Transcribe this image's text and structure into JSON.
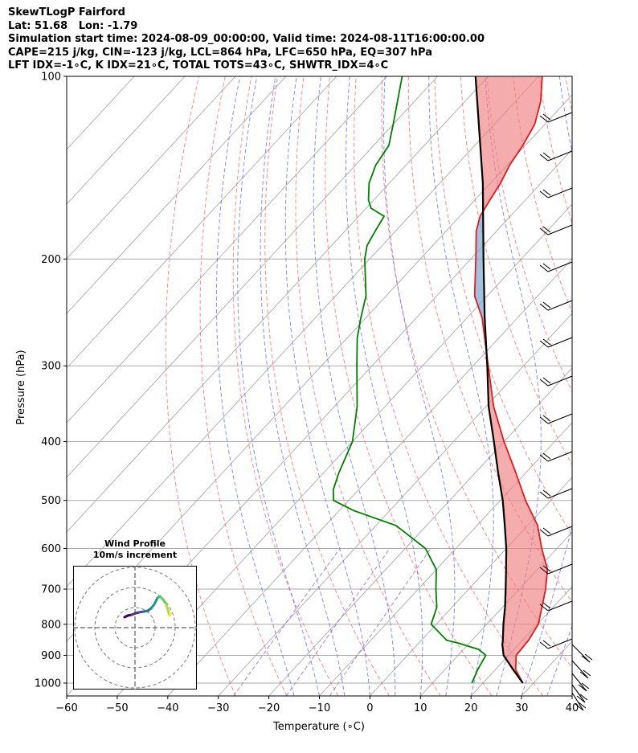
{
  "title": {
    "line1": "SkewTLogP Fairford",
    "line2": "Lat: 51.68   Lon: -1.79",
    "line3": "Simulation start time: 2024-08-09_00:00:00, Valid time: 2024-08-11T16:00:00.00",
    "line4": "CAPE=215 j/kg, CIN=-123 j/kg, LCL=864 hPa, LFC=650 hPa, EQ=307 hPa",
    "line5": "LFT IDX=-1∘C, K IDX=21∘C, TOTAL TOTS=43∘C, SHWTR_IDX=4∘C"
  },
  "inset": {
    "title1": "Wind Profile",
    "title2": "10m/s increment"
  },
  "colors": {
    "temperature": "#e41a1c",
    "dewpoint": "#008000",
    "parcel": "#000000",
    "cape_fill": "#7aaad2",
    "cin_fill": "#f08080",
    "dry_adiabat": "#ff6666",
    "moist_adiabat": "#6666ff",
    "mixing_ratio": "#9966cc",
    "isotherm": "#aaaaaa"
  },
  "chart_data": {
    "type": "line",
    "subtype": "skewT-logP",
    "xlabel": "Temperature (∘C)",
    "ylabel": "Pressure (hPa)",
    "xlim": [
      -60,
      40
    ],
    "ylim": [
      1050,
      100
    ],
    "y_scale": "log",
    "x_ticks": [
      "−60",
      "−50",
      "−40",
      "−30",
      "−20",
      "−10",
      "0",
      "10",
      "20",
      "30",
      "40"
    ],
    "y_ticks": [
      "100",
      "200",
      "300",
      "400",
      "500",
      "600",
      "700",
      "800",
      "900",
      "1000"
    ],
    "grid": true,
    "series": [
      {
        "key": "temperature",
        "points": [
          [
            1000,
            27.9
          ],
          [
            950,
            24
          ],
          [
            900,
            21.5
          ],
          [
            850,
            21.2
          ],
          [
            800,
            20.2
          ],
          [
            750,
            17.8
          ],
          [
            700,
            15.2
          ],
          [
            650,
            12
          ],
          [
            600,
            7
          ],
          [
            550,
            2
          ],
          [
            500,
            -5
          ],
          [
            450,
            -12
          ],
          [
            400,
            -20
          ],
          [
            350,
            -28.5
          ],
          [
            300,
            -37
          ],
          [
            250,
            -47
          ],
          [
            230,
            -52.5
          ],
          [
            200,
            -59
          ],
          [
            180,
            -64
          ],
          [
            170,
            -66
          ],
          [
            160,
            -67
          ],
          [
            150,
            -68
          ],
          [
            140,
            -69.5
          ],
          [
            130,
            -70.5
          ],
          [
            120,
            -72
          ],
          [
            110,
            -75
          ],
          [
            100,
            -79.3
          ]
        ]
      },
      {
        "key": "dewpoint",
        "points": [
          [
            1000,
            17.8
          ],
          [
            950,
            16.5
          ],
          [
            900,
            15.5
          ],
          [
            880,
            13
          ],
          [
            860,
            8
          ],
          [
            850,
            5
          ],
          [
            800,
            -1
          ],
          [
            750,
            -3
          ],
          [
            700,
            -6.5
          ],
          [
            650,
            -10
          ],
          [
            600,
            -16
          ],
          [
            550,
            -26
          ],
          [
            520,
            -37
          ],
          [
            500,
            -43
          ],
          [
            480,
            -45
          ],
          [
            450,
            -47
          ],
          [
            400,
            -50
          ],
          [
            350,
            -55.5
          ],
          [
            300,
            -63
          ],
          [
            270,
            -68
          ],
          [
            250,
            -71
          ],
          [
            230,
            -74
          ],
          [
            200,
            -81
          ],
          [
            190,
            -83
          ],
          [
            180,
            -84
          ],
          [
            170,
            -85
          ],
          [
            165,
            -89
          ],
          [
            160,
            -91
          ],
          [
            150,
            -94
          ],
          [
            140,
            -96
          ],
          [
            130,
            -97
          ],
          [
            120,
            -100
          ],
          [
            100,
            -107
          ]
        ]
      },
      {
        "key": "parcel",
        "points": [
          [
            1000,
            27.9
          ],
          [
            950,
            23.5
          ],
          [
            900,
            19
          ],
          [
            864,
            16.8
          ],
          [
            850,
            16.1
          ],
          [
            800,
            13.3
          ],
          [
            750,
            10.5
          ],
          [
            700,
            7.3
          ],
          [
            650,
            3.8
          ],
          [
            600,
            0
          ],
          [
            550,
            -4.5
          ],
          [
            500,
            -9.5
          ],
          [
            450,
            -15.5
          ],
          [
            400,
            -22
          ],
          [
            350,
            -29.5
          ],
          [
            300,
            -37.2
          ],
          [
            250,
            -46.5
          ],
          [
            200,
            -57.5
          ],
          [
            150,
            -71.5
          ],
          [
            100,
            -92.5
          ]
        ]
      }
    ],
    "wind_profile": {
      "increment_ms": 10
    }
  }
}
